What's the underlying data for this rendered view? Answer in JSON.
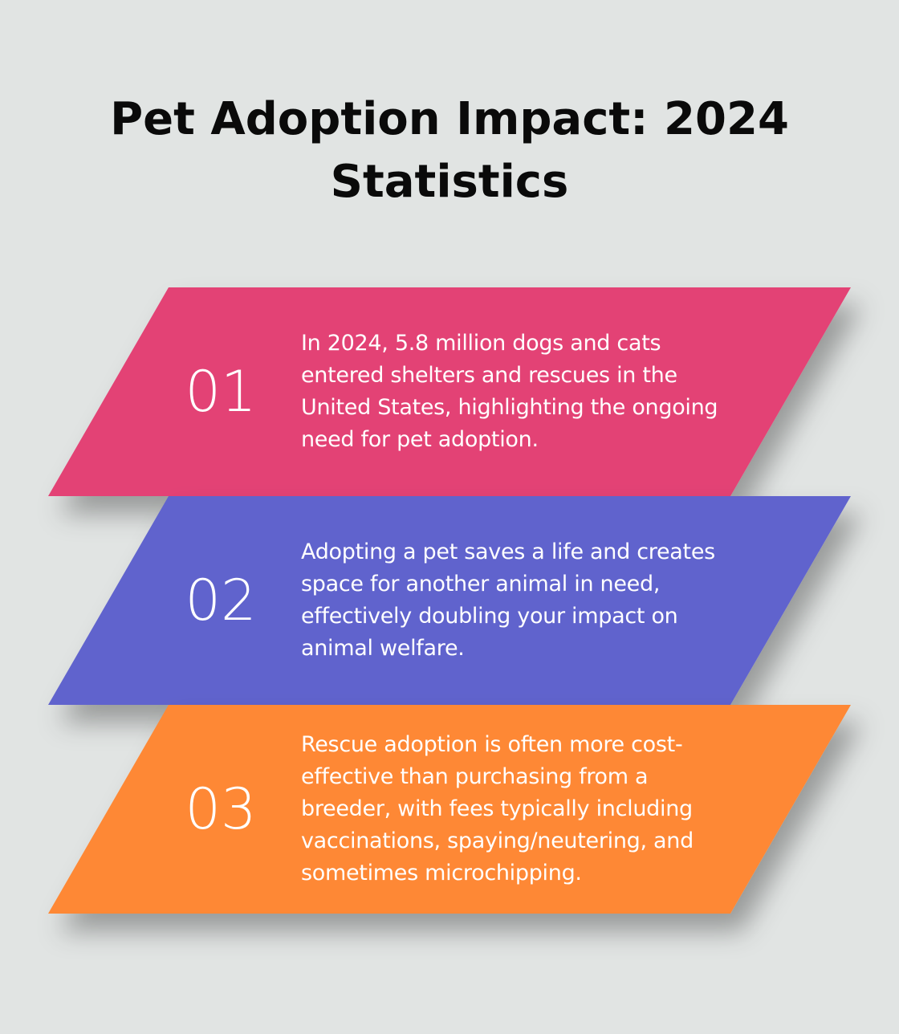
{
  "title": "Pet Adoption Impact: 2024 Statistics",
  "title_lines": [
    "Pet Adoption Impact: 2024",
    "Statistics"
  ],
  "cards": [
    {
      "number": "01",
      "text": "In 2024, 5.8 million dogs and cats entered shelters and rescues in the United States, highlighting the ongoing need for pet adoption.",
      "color": "#e34275"
    },
    {
      "number": "02",
      "text": "Adopting a pet saves a life and creates space for another animal in need, effectively doubling your impact on animal welfare.",
      "color": "#6063cd"
    },
    {
      "number": "03",
      "text": "Rescue adoption is often more cost-effective than purchasing from a breeder, with fees typically including vaccinations, spaying/neutering, and sometimes microchipping.",
      "color": "#fe8834"
    }
  ],
  "colors": {
    "background": "#e1e4e3",
    "title": "#0a0a0a",
    "card_text": "#ffffff"
  }
}
